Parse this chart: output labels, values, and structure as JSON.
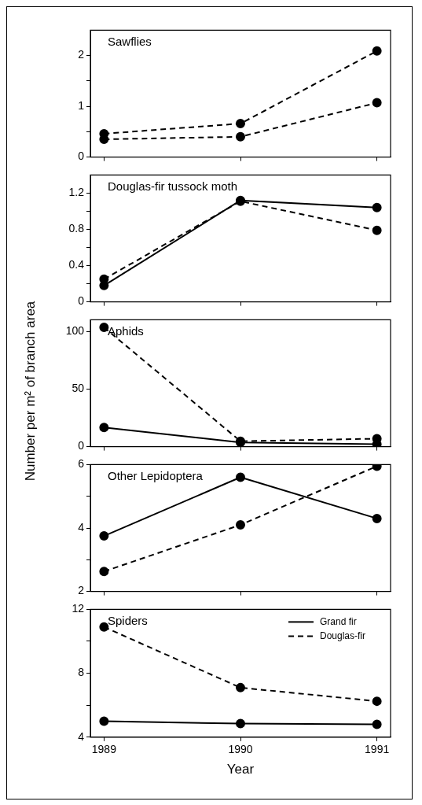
{
  "chart_data": [
    {
      "type": "line",
      "title": "Sawflies",
      "x": [
        1989,
        1990,
        1991
      ],
      "xlim": [
        1988.9,
        1991.1
      ],
      "xticks": [
        1989,
        1990,
        1991
      ],
      "ylim": [
        0,
        2.5
      ],
      "yticks": [
        0,
        {
          "value": 0.5,
          "label": null
        },
        1,
        {
          "value": 1.5,
          "label": null
        },
        2
      ],
      "tick_labels": "y",
      "marker": "circle",
      "series": [
        {
          "color": "#000000",
          "line_style": "dashed",
          "values": [
            0.35,
            0.4,
            1.07
          ]
        },
        {
          "color": "#000000",
          "line_style": "dashed",
          "values": [
            0.46,
            0.66,
            2.09
          ]
        }
      ]
    },
    {
      "type": "line",
      "title": "Douglas-fir tussock moth",
      "x": [
        1989,
        1990,
        1991
      ],
      "xlim": [
        1988.9,
        1991.1
      ],
      "xticks": [
        1989,
        1990,
        1991
      ],
      "ylim": [
        0,
        1.4
      ],
      "yticks": [
        0,
        {
          "value": 0.2,
          "label": null
        },
        0.4,
        {
          "value": 0.6,
          "label": null
        },
        0.8,
        {
          "value": 1.0,
          "label": null
        },
        1.2
      ],
      "tick_labels": "y",
      "marker": "circle",
      "series": [
        {
          "color": "#000000",
          "line_style": "solid",
          "values": [
            0.18,
            1.12,
            1.04
          ]
        },
        {
          "color": "#000000",
          "line_style": "dashed",
          "values": [
            0.25,
            1.11,
            0.79
          ]
        }
      ]
    },
    {
      "type": "line",
      "title": "Aphids",
      "ylabel": "Number per m² of branch area",
      "x": [
        1989,
        1990,
        1991
      ],
      "xlim": [
        1988.9,
        1991.1
      ],
      "xticks": [
        1989,
        1990,
        1991
      ],
      "ylim": [
        0,
        110
      ],
      "yticks": [
        0,
        50,
        100
      ],
      "tick_labels": "y",
      "marker": "circle",
      "series": [
        {
          "color": "#000000",
          "line_style": "solid",
          "values": [
            16.6,
            3.7,
            2.2
          ]
        },
        {
          "color": "#000000",
          "line_style": "dashed",
          "values": [
            103.4,
            4.7,
            6.9
          ]
        }
      ]
    },
    {
      "type": "line",
      "title": "Other Lepidoptera",
      "x": [
        1989,
        1990,
        1991
      ],
      "xlim": [
        1988.9,
        1991.1
      ],
      "xticks": [
        1989,
        1990,
        1991
      ],
      "ylim": [
        2,
        6
      ],
      "yticks": [
        2,
        {
          "value": 3,
          "label": null
        },
        4,
        {
          "value": 5,
          "label": null
        },
        6
      ],
      "tick_labels": "y",
      "marker": "circle",
      "series": [
        {
          "color": "#000000",
          "line_style": "solid",
          "values": [
            3.75,
            5.6,
            4.3
          ]
        },
        {
          "color": "#000000",
          "line_style": "dashed",
          "values": [
            2.63,
            4.1,
            5.95
          ]
        }
      ]
    },
    {
      "type": "line",
      "title": "Spiders",
      "xlabel": "Year",
      "x": [
        1989,
        1990,
        1991
      ],
      "xlim": [
        1988.9,
        1991.1
      ],
      "xticks": [
        1989,
        1990,
        1991
      ],
      "ylim": [
        4,
        12
      ],
      "yticks": [
        4,
        {
          "value": 6,
          "label": null
        },
        8,
        {
          "value": 10,
          "label": null
        },
        12
      ],
      "marker": "circle",
      "legend": "top right",
      "series": [
        {
          "name": "Grand fir",
          "color": "#000000",
          "line_style": "solid",
          "values": [
            5.0,
            4.85,
            4.8
          ]
        },
        {
          "name": "Douglas-fir",
          "color": "#000000",
          "line_style": "dashed",
          "values": [
            10.9,
            7.1,
            6.25
          ]
        }
      ]
    }
  ]
}
